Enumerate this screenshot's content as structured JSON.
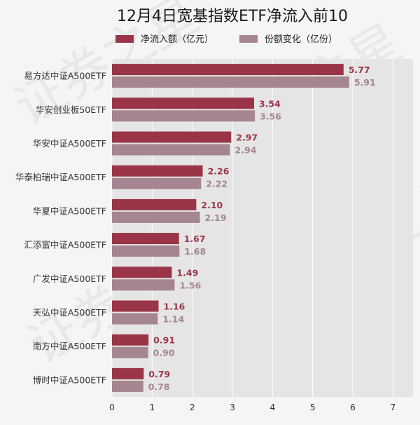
{
  "chart_data": {
    "type": "bar",
    "orientation": "horizontal",
    "title": "12月4日宽基指数ETF净流入前10",
    "categories": [
      "易方达中证A500ETF",
      "华安创业板50ETF",
      "华安中证A500ETF",
      "华泰柏瑞中证A500ETF",
      "华夏中证A500ETF",
      "汇添富中证A500ETF",
      "广发中证A500ETF",
      "天弘中证A500ETF",
      "南方中证A500ETF",
      "博时中证A500ETF"
    ],
    "series": [
      {
        "name": "净流入额（亿元）",
        "color": "#9a3548",
        "values": [
          5.77,
          3.54,
          2.97,
          2.26,
          2.1,
          1.67,
          1.49,
          1.16,
          0.91,
          0.79
        ],
        "labels": [
          "5.77",
          "3.54",
          "2.97",
          "2.26",
          "2.10",
          "1.67",
          "1.49",
          "1.16",
          "0.91",
          "0.79"
        ]
      },
      {
        "name": "份额变化（亿份）",
        "color": "#a58590",
        "values": [
          5.91,
          3.56,
          2.94,
          2.22,
          2.19,
          1.68,
          1.56,
          1.14,
          0.9,
          0.78
        ],
        "labels": [
          "5.91",
          "3.56",
          "2.94",
          "2.22",
          "2.19",
          "1.68",
          "1.56",
          "1.14",
          "0.90",
          "0.78"
        ]
      }
    ],
    "xlim": [
      0,
      7.5
    ],
    "xticks": [
      "0",
      "1",
      "2",
      "3",
      "4",
      "5",
      "6",
      "7"
    ],
    "grid": true,
    "legend_position": "top-center",
    "watermark": "证券之星"
  }
}
